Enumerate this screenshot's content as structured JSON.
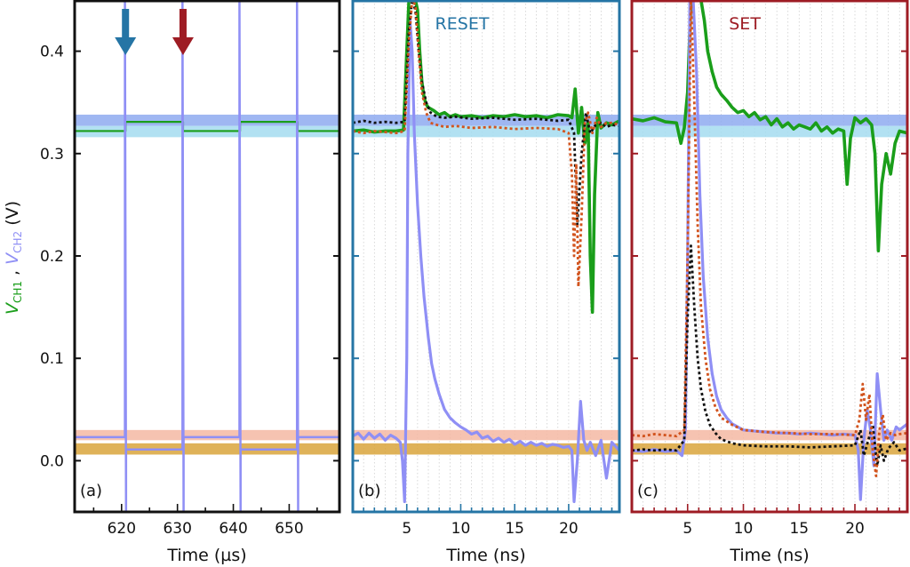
{
  "chart_data": {
    "type": "line",
    "ylabel": {
      "part1_main": "V",
      "part1_sub": "CH1",
      "separator": " , ",
      "part2_main": "V",
      "part2_sub": "CH2",
      "unit": " (V)"
    },
    "ylim": [
      -0.05,
      0.45
    ],
    "yticks": [
      0.0,
      0.1,
      0.2,
      0.3,
      0.4
    ],
    "ytick_labels": [
      "0.0",
      "0.1",
      "0.2",
      "0.3",
      "0.4"
    ],
    "colors": {
      "ch1": "#1a9e1a",
      "ch2": "#8f8ff5",
      "black_dotted": "#111111",
      "orange_dotted": "#d2541e",
      "band_blue_dark": "#8eaaf0",
      "band_blue_light": "#a4dcf0",
      "band_salmon": "#f5b8a3",
      "band_gold": "#d9a53c",
      "reset": "#2575a5",
      "set": "#9e1c24"
    },
    "bands": [
      {
        "name": "ch1-level-high",
        "y": [
          0.327,
          0.338
        ],
        "color": "#8eaaf0"
      },
      {
        "name": "ch1-level-low",
        "y": [
          0.316,
          0.327
        ],
        "color": "#a4dcf0"
      },
      {
        "name": "ch2-level-high",
        "y": [
          0.02,
          0.03
        ],
        "color": "#f5b8a3"
      },
      {
        "name": "ch2-level-low",
        "y": [
          0.006,
          0.017
        ],
        "color": "#d9a53c"
      }
    ],
    "panels": [
      {
        "id": "a",
        "tag": "(a)",
        "title": "",
        "frame_color": "#111111",
        "xlabel": "Time (µs)",
        "xlim": [
          611.6,
          659.0
        ],
        "xticks": [
          620,
          630,
          640,
          650
        ],
        "xtick_labels": [
          "620",
          "630",
          "640",
          "650"
        ],
        "arrows": [
          {
            "x": 620.7,
            "color": "#2575a5"
          },
          {
            "x": 631.0,
            "color": "#9e1c24"
          }
        ],
        "series": [
          {
            "name": "ch1",
            "style": "solid",
            "color": "#1a9e1a",
            "x": [
              611.6,
              620.7,
              620.7,
              631.0,
              631.0,
              641.2,
              641.2,
              651.5,
              651.5,
              659.0
            ],
            "y": [
              0.322,
              0.322,
              0.331,
              0.331,
              0.322,
              0.322,
              0.331,
              0.331,
              0.322,
              0.322
            ]
          },
          {
            "name": "ch2",
            "style": "solid",
            "color": "#8f8ff5",
            "x": [
              611.6,
              620.6,
              620.6,
              620.8,
              620.8,
              630.9,
              630.9,
              631.1,
              631.1,
              641.1,
              641.1,
              641.3,
              641.3,
              651.4,
              651.4,
              651.6,
              651.6,
              659.0
            ],
            "y": [
              0.023,
              0.023,
              0.45,
              -0.05,
              0.011,
              0.011,
              0.45,
              -0.05,
              0.023,
              0.023,
              0.45,
              -0.05,
              0.011,
              0.011,
              0.45,
              -0.05,
              0.023,
              0.023
            ]
          }
        ]
      },
      {
        "id": "b",
        "tag": "(b)",
        "title": "RESET",
        "frame_color": "#2575a5",
        "xlabel": "Time (ns)",
        "xlim": [
          0.0,
          24.7
        ],
        "xticks": [
          5,
          10,
          15,
          20
        ],
        "xtick_labels": [
          "5",
          "10",
          "15",
          "20"
        ],
        "arrows": [],
        "series": [
          {
            "name": "ch2",
            "style": "solid",
            "color": "#8f8ff5",
            "x": [
              0.0,
              0.5,
              1.0,
              1.5,
              2.0,
              2.5,
              3.0,
              3.5,
              4.0,
              4.4,
              4.6,
              4.8,
              5.0,
              5.1,
              5.3,
              5.5,
              5.7,
              6.0,
              6.3,
              6.6,
              7.0,
              7.3,
              7.6,
              8.0,
              8.5,
              9.0,
              9.5,
              10.0,
              10.5,
              11.0,
              11.5,
              12.0,
              12.5,
              13.0,
              13.5,
              14.0,
              14.5,
              15.0,
              15.5,
              16.0,
              16.5,
              17.0,
              17.5,
              18.0,
              18.5,
              19.0,
              19.5,
              20.0,
              20.3,
              20.5,
              20.8,
              21.1,
              21.4,
              21.7,
              22.0,
              22.5,
              23.0,
              23.5,
              24.0,
              24.7
            ],
            "y": [
              0.024,
              0.027,
              0.021,
              0.027,
              0.022,
              0.026,
              0.02,
              0.025,
              0.022,
              0.018,
              0.0,
              -0.04,
              0.1,
              0.3,
              0.43,
              0.4,
              0.32,
              0.25,
              0.2,
              0.16,
              0.12,
              0.095,
              0.08,
              0.065,
              0.05,
              0.042,
              0.037,
              0.033,
              0.03,
              0.026,
              0.028,
              0.022,
              0.024,
              0.019,
              0.022,
              0.018,
              0.021,
              0.016,
              0.019,
              0.015,
              0.018,
              0.015,
              0.017,
              0.014,
              0.016,
              0.015,
              0.013,
              0.014,
              0.01,
              -0.04,
              0.0,
              0.058,
              0.02,
              0.01,
              0.018,
              0.005,
              0.02,
              -0.017,
              0.018,
              0.01
            ]
          },
          {
            "name": "ch1",
            "style": "solid",
            "color": "#1a9e1a",
            "x": [
              0.0,
              1.0,
              2.0,
              3.0,
              4.0,
              4.7,
              5.0,
              5.2,
              5.4,
              5.6,
              5.8,
              6.0,
              6.2,
              6.4,
              6.6,
              6.8,
              7.0,
              7.5,
              8.0,
              8.5,
              9.0,
              9.5,
              10.0,
              11.0,
              12.0,
              13.0,
              14.0,
              15.0,
              16.0,
              17.0,
              18.0,
              19.0,
              20.0,
              20.3,
              20.6,
              20.9,
              21.2,
              21.5,
              21.8,
              22.0,
              22.2,
              22.4,
              22.7,
              23.0,
              23.5,
              24.0,
              24.7
            ],
            "y": [
              0.322,
              0.323,
              0.321,
              0.322,
              0.322,
              0.323,
              0.4,
              0.45,
              0.45,
              0.45,
              0.45,
              0.44,
              0.4,
              0.37,
              0.355,
              0.348,
              0.345,
              0.342,
              0.338,
              0.34,
              0.336,
              0.338,
              0.336,
              0.337,
              0.335,
              0.337,
              0.336,
              0.338,
              0.336,
              0.337,
              0.335,
              0.338,
              0.337,
              0.335,
              0.363,
              0.32,
              0.345,
              0.31,
              0.33,
              0.2,
              0.145,
              0.26,
              0.34,
              0.325,
              0.33,
              0.328,
              0.332
            ]
          },
          {
            "name": "black-dotted",
            "style": "dotted",
            "color": "#111111",
            "x": [
              0.0,
              1.0,
              2.0,
              3.0,
              4.0,
              4.8,
              5.2,
              5.5,
              5.8,
              6.1,
              6.4,
              6.8,
              7.2,
              7.8,
              8.5,
              9.5,
              11.0,
              13.0,
              15.0,
              17.0,
              19.0,
              20.0,
              20.5,
              20.8,
              21.2,
              21.6,
              22.0,
              22.5,
              23.0,
              23.5,
              24.0,
              24.7
            ],
            "y": [
              0.33,
              0.332,
              0.33,
              0.331,
              0.33,
              0.331,
              0.42,
              0.45,
              0.44,
              0.4,
              0.37,
              0.35,
              0.34,
              0.336,
              0.335,
              0.336,
              0.334,
              0.335,
              0.333,
              0.334,
              0.332,
              0.333,
              0.32,
              0.23,
              0.3,
              0.34,
              0.32,
              0.328,
              0.33,
              0.326,
              0.328,
              0.327
            ]
          },
          {
            "name": "orange-dotted",
            "style": "dotted",
            "color": "#d2541e",
            "x": [
              0.0,
              1.0,
              2.0,
              3.0,
              4.0,
              4.8,
              5.2,
              5.5,
              5.8,
              6.1,
              6.4,
              6.8,
              7.2,
              7.8,
              8.5,
              9.5,
              11.0,
              13.0,
              15.0,
              17.0,
              19.0,
              20.0,
              20.3,
              20.5,
              20.7,
              20.9,
              21.2,
              21.5,
              21.8,
              22.2,
              22.6,
              23.0,
              23.5,
              24.0,
              24.7
            ],
            "y": [
              0.322,
              0.32,
              0.322,
              0.321,
              0.32,
              0.322,
              0.41,
              0.45,
              0.445,
              0.4,
              0.36,
              0.34,
              0.33,
              0.328,
              0.326,
              0.327,
              0.325,
              0.326,
              0.324,
              0.325,
              0.324,
              0.32,
              0.28,
              0.2,
              0.29,
              0.17,
              0.24,
              0.33,
              0.34,
              0.32,
              0.335,
              0.326,
              0.33,
              0.33,
              0.328
            ]
          }
        ]
      },
      {
        "id": "c",
        "tag": "(c)",
        "title": "SET",
        "frame_color": "#9e1c24",
        "xlabel": "Time (ns)",
        "xlim": [
          0.0,
          24.7
        ],
        "xticks": [
          5,
          10,
          15,
          20
        ],
        "xtick_labels": [
          "5",
          "10",
          "15",
          "20"
        ],
        "arrows": [],
        "series": [
          {
            "name": "ch1",
            "style": "solid",
            "color": "#1a9e1a",
            "x": [
              0.0,
              1.0,
              2.0,
              3.0,
              4.0,
              4.4,
              4.7,
              5.0,
              5.3,
              5.6,
              5.9,
              6.2,
              6.5,
              6.8,
              7.2,
              7.6,
              8.0,
              8.5,
              9.0,
              9.5,
              10.0,
              10.5,
              11.0,
              11.5,
              12.0,
              12.5,
              13.0,
              13.5,
              14.0,
              14.5,
              15.0,
              15.5,
              16.0,
              16.5,
              17.0,
              17.5,
              18.0,
              18.5,
              19.0,
              19.3,
              19.6,
              20.0,
              20.5,
              21.0,
              21.5,
              21.8,
              22.1,
              22.4,
              22.8,
              23.2,
              23.6,
              24.0,
              24.7
            ],
            "y": [
              0.334,
              0.332,
              0.335,
              0.331,
              0.33,
              0.31,
              0.325,
              0.36,
              0.45,
              0.45,
              0.45,
              0.45,
              0.43,
              0.4,
              0.38,
              0.365,
              0.358,
              0.352,
              0.345,
              0.34,
              0.342,
              0.336,
              0.34,
              0.333,
              0.336,
              0.328,
              0.334,
              0.326,
              0.33,
              0.324,
              0.328,
              0.326,
              0.324,
              0.33,
              0.322,
              0.326,
              0.32,
              0.324,
              0.322,
              0.27,
              0.315,
              0.335,
              0.33,
              0.334,
              0.328,
              0.3,
              0.205,
              0.27,
              0.3,
              0.28,
              0.31,
              0.322,
              0.32
            ]
          },
          {
            "name": "ch2",
            "style": "solid",
            "color": "#8f8ff5",
            "x": [
              0.0,
              1.0,
              2.0,
              3.0,
              4.0,
              4.5,
              4.8,
              5.0,
              5.2,
              5.5,
              5.8,
              6.1,
              6.4,
              6.8,
              7.2,
              7.6,
              8.0,
              8.5,
              9.0,
              10.0,
              11.0,
              12.0,
              13.0,
              14.0,
              15.0,
              16.0,
              17.0,
              18.0,
              19.0,
              20.0,
              20.3,
              20.5,
              20.8,
              21.1,
              21.4,
              21.7,
              22.0,
              22.3,
              22.6,
              22.9,
              23.3,
              23.7,
              24.0,
              24.7
            ],
            "y": [
              0.01,
              0.009,
              0.011,
              0.009,
              0.01,
              0.005,
              0.03,
              0.2,
              0.45,
              0.45,
              0.38,
              0.26,
              0.18,
              0.12,
              0.085,
              0.063,
              0.05,
              0.042,
              0.036,
              0.03,
              0.029,
              0.028,
              0.027,
              0.027,
              0.026,
              0.027,
              0.026,
              0.025,
              0.026,
              0.025,
              0.01,
              -0.038,
              0.02,
              0.05,
              0.03,
              -0.005,
              0.085,
              0.05,
              0.02,
              0.03,
              0.02,
              0.033,
              0.03,
              0.036
            ]
          },
          {
            "name": "black-dotted",
            "style": "dotted",
            "color": "#111111",
            "x": [
              0.0,
              1.0,
              2.0,
              3.0,
              4.0,
              4.7,
              5.0,
              5.3,
              5.6,
              5.9,
              6.2,
              6.6,
              7.0,
              7.5,
              8.0,
              9.0,
              10.0,
              12.0,
              14.0,
              16.0,
              18.0,
              20.0,
              20.5,
              20.8,
              21.2,
              21.6,
              22.0,
              22.3,
              22.6,
              23.0,
              23.5,
              24.0,
              24.7
            ],
            "y": [
              0.01,
              0.011,
              0.01,
              0.011,
              0.01,
              0.02,
              0.14,
              0.21,
              0.15,
              0.1,
              0.07,
              0.048,
              0.035,
              0.027,
              0.021,
              0.017,
              0.015,
              0.014,
              0.014,
              0.013,
              0.014,
              0.015,
              0.03,
              0.005,
              0.02,
              0.035,
              -0.005,
              0.015,
              0.0,
              0.012,
              0.018,
              0.01,
              0.012
            ]
          },
          {
            "name": "orange-dotted",
            "style": "dotted",
            "color": "#d2541e",
            "x": [
              0.0,
              1.0,
              2.0,
              3.0,
              4.0,
              4.7,
              5.0,
              5.3,
              5.6,
              5.9,
              6.2,
              6.6,
              7.0,
              7.5,
              8.0,
              9.0,
              10.0,
              12.0,
              14.0,
              16.0,
              18.0,
              20.0,
              20.4,
              20.7,
              21.0,
              21.3,
              21.6,
              21.9,
              22.2,
              22.5,
              22.8,
              23.2,
              23.6,
              24.0,
              24.7
            ],
            "y": [
              0.025,
              0.024,
              0.026,
              0.025,
              0.024,
              0.03,
              0.2,
              0.45,
              0.35,
              0.23,
              0.15,
              0.1,
              0.07,
              0.052,
              0.042,
              0.035,
              0.03,
              0.028,
              0.027,
              0.026,
              0.026,
              0.025,
              0.04,
              0.075,
              0.04,
              0.065,
              0.01,
              -0.015,
              0.03,
              0.045,
              0.02,
              0.027,
              0.025,
              0.026,
              0.027
            ]
          }
        ]
      }
    ]
  }
}
